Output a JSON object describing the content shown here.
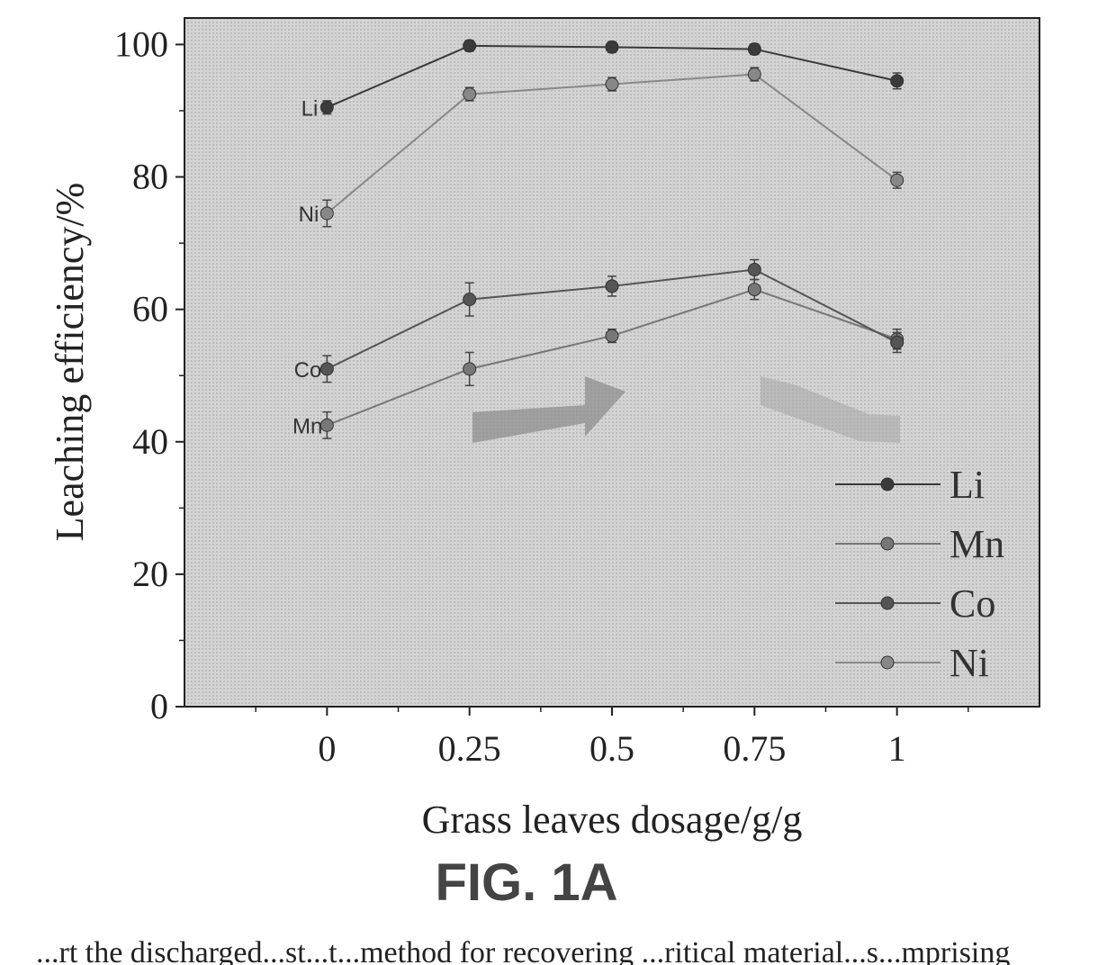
{
  "chart_data": {
    "type": "line",
    "xlabel": "Grass leaves dosage/g/g",
    "ylabel": "Leaching efficiency/%",
    "caption": "FIG. 1A",
    "x": [
      0,
      0.25,
      0.5,
      0.75,
      1
    ],
    "x_tick_labels": [
      "0",
      "0.25",
      "0.5",
      "0.75",
      "1"
    ],
    "y_ticks": [
      0,
      20,
      40,
      60,
      80,
      100
    ],
    "xlim": [
      -0.25,
      1.25
    ],
    "ylim": [
      0,
      104
    ],
    "grid": false,
    "legend_position": "bottom-right",
    "series": [
      {
        "name": "Li",
        "values": [
          90.5,
          99.8,
          99.6,
          99.3,
          94.5
        ],
        "errors": [
          1,
          0.8,
          0.8,
          0.8,
          1.2
        ],
        "color": "#3a3a3a",
        "inline_label": "Li"
      },
      {
        "name": "Mn",
        "values": [
          42.5,
          51,
          56,
          63,
          55.5
        ],
        "errors": [
          2,
          2.5,
          1,
          1.5,
          1.5
        ],
        "color": "#777777",
        "inline_label": "Mn"
      },
      {
        "name": "Co",
        "values": [
          51,
          61.5,
          63.5,
          66,
          55
        ],
        "errors": [
          2,
          2.5,
          1.5,
          1.5,
          1.5
        ],
        "color": "#555555",
        "inline_label": "Co"
      },
      {
        "name": "Ni",
        "values": [
          74.5,
          92.5,
          94,
          95.5,
          79.5
        ],
        "errors": [
          2,
          1,
          1,
          1,
          1.2
        ],
        "color": "#888888",
        "inline_label": "Ni"
      }
    ]
  },
  "footer_text": "...rt the discharged...st...t...method for recovering ...ritical material...s...mprising"
}
